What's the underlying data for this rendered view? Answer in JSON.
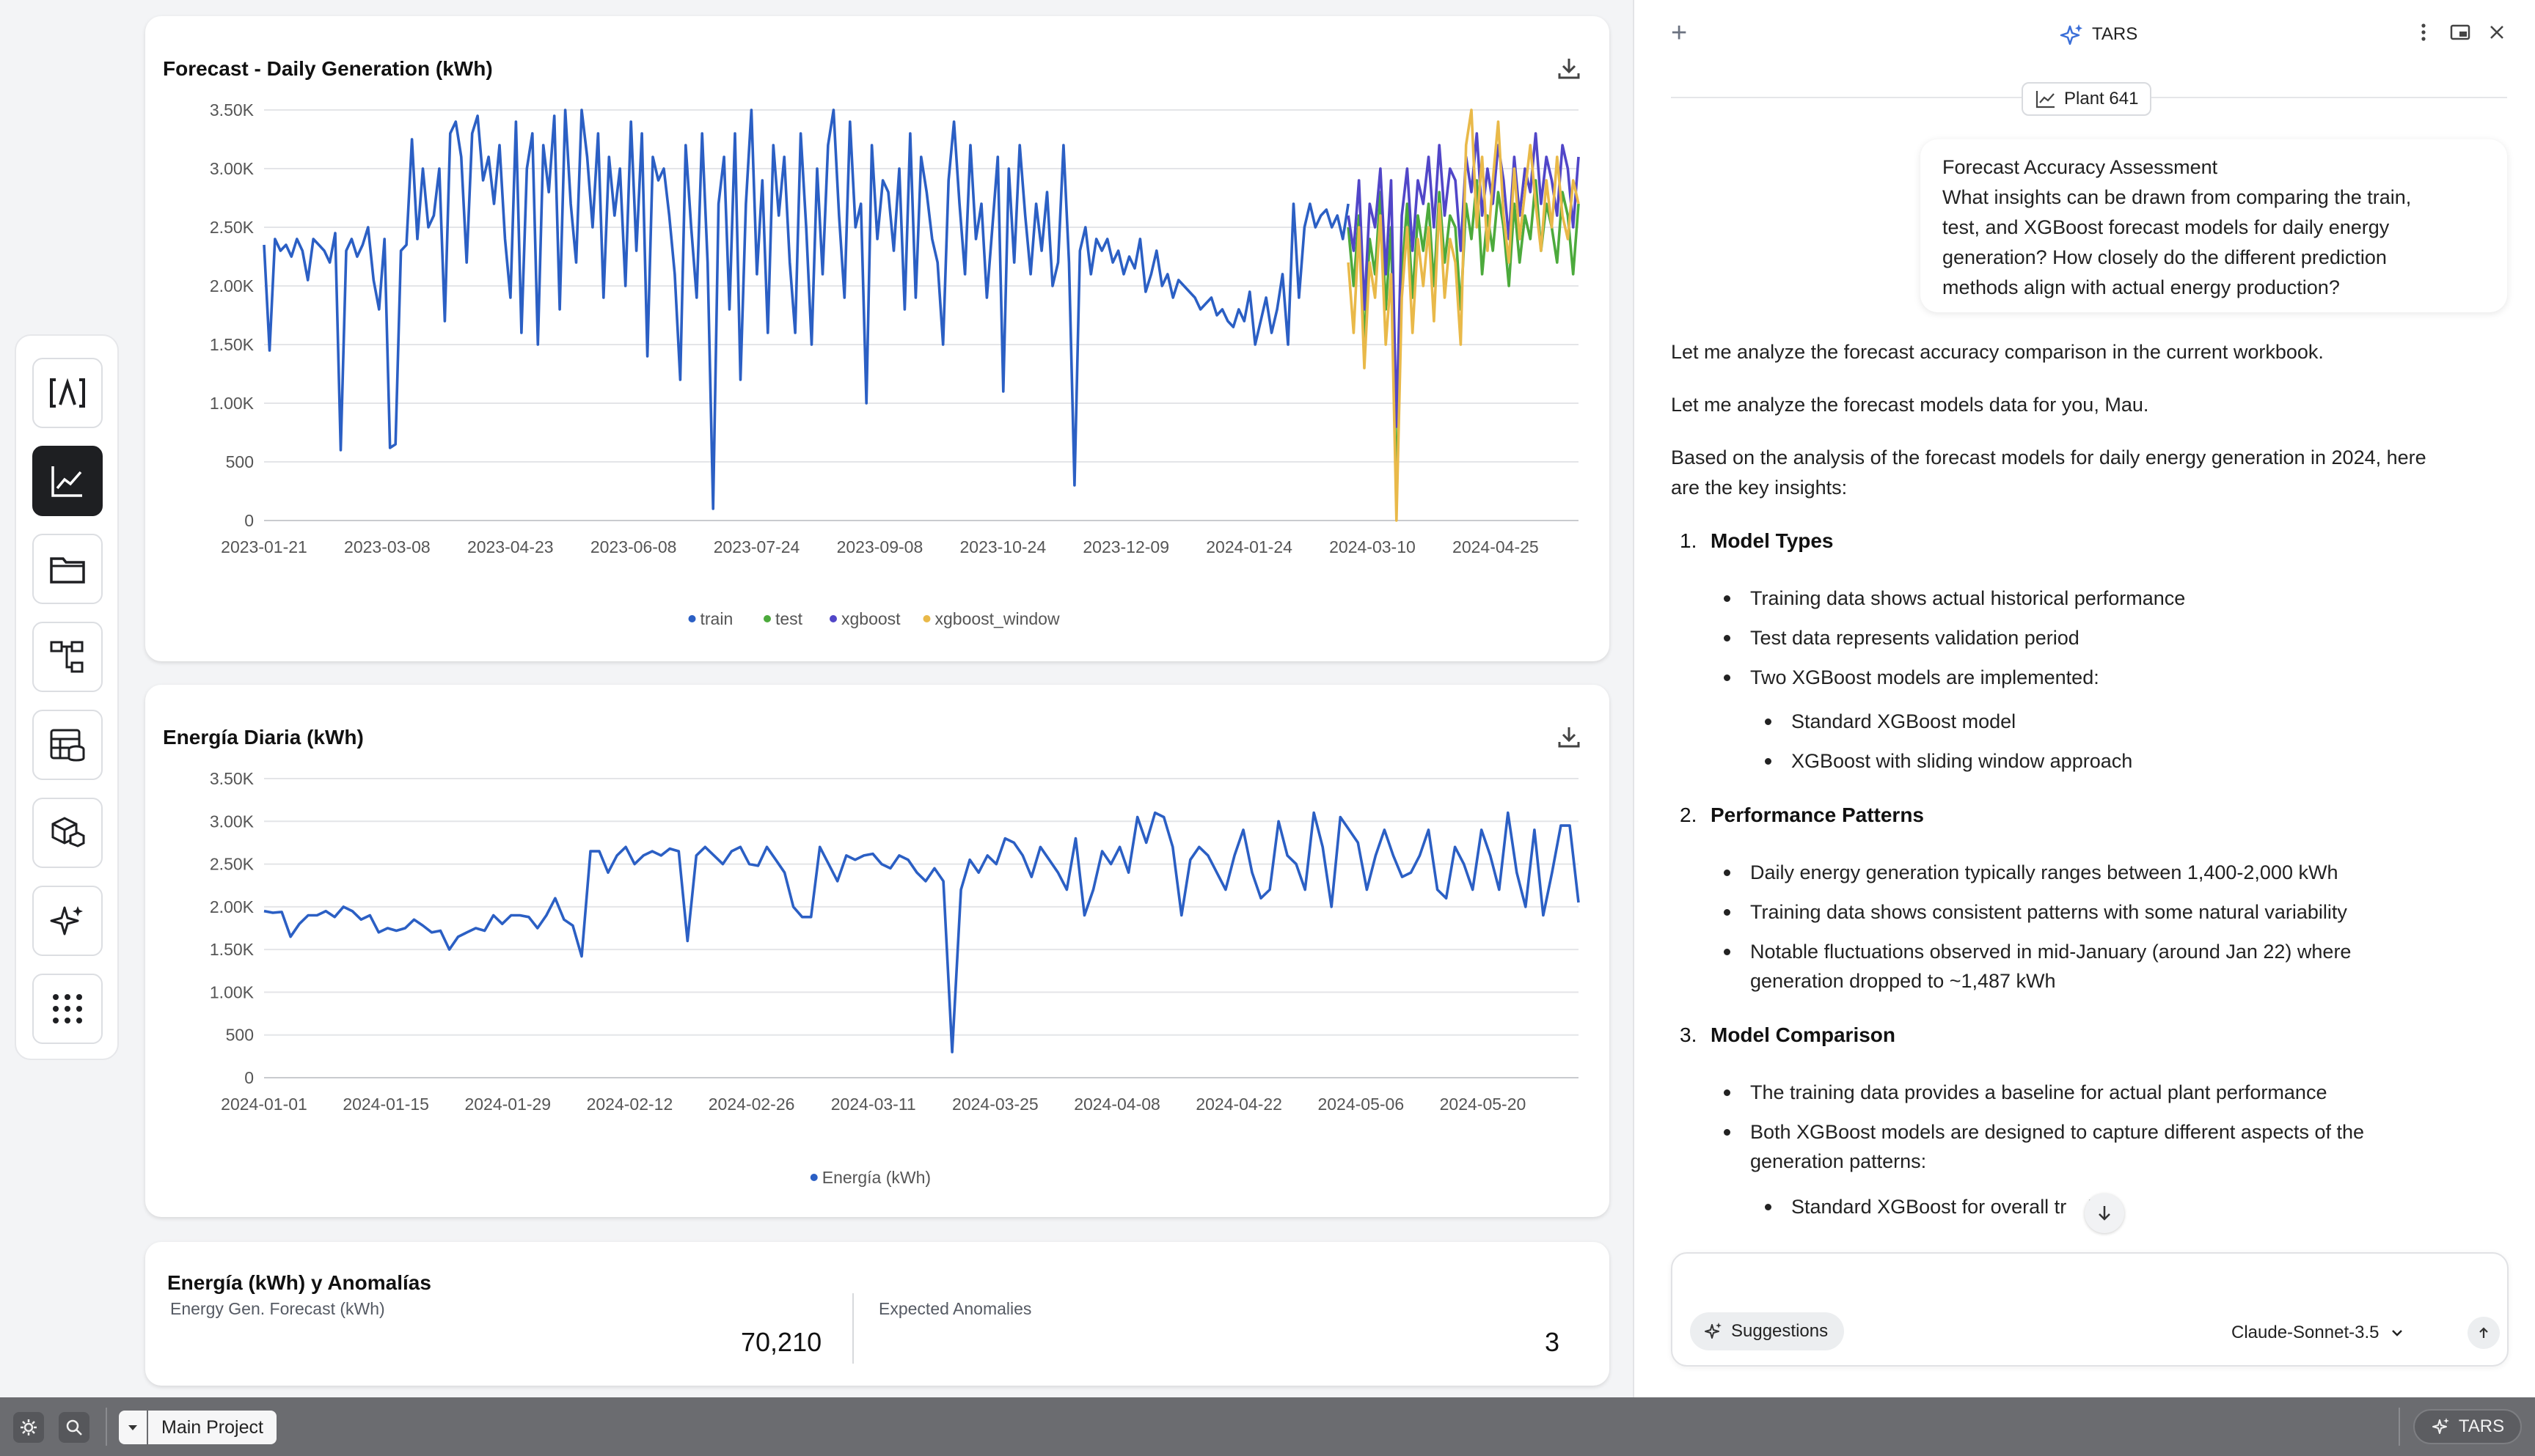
{
  "rail": {
    "items": [
      {
        "name": "lambda-logo-icon",
        "label": "[Λ]"
      },
      {
        "name": "line-chart-icon",
        "active": true
      },
      {
        "name": "folder-icon"
      },
      {
        "name": "flow-diagram-icon"
      },
      {
        "name": "table-database-icon"
      },
      {
        "name": "cube-icon"
      },
      {
        "name": "sparkle-icon"
      },
      {
        "name": "apps-grid-icon"
      }
    ]
  },
  "chart1": {
    "title": "Forecast - Daily Generation (kWh)",
    "chart_data": {
      "type": "line",
      "title": "Forecast - Daily Generation (kWh)",
      "x_start": "2023-01-21",
      "x_end": "2024-05-26",
      "x_ticks": [
        "2023-01-21",
        "2023-03-08",
        "2023-04-23",
        "2023-06-08",
        "2023-07-24",
        "2023-09-08",
        "2023-10-24",
        "2023-12-09",
        "2024-01-24",
        "2024-03-10",
        "2024-04-25"
      ],
      "y_ticks": [
        "0",
        "500",
        "1.00K",
        "1.50K",
        "2.00K",
        "2.50K",
        "3.00K",
        "3.50K"
      ],
      "ylim": [
        0,
        3500
      ],
      "legend_position": "bottom",
      "grid": true,
      "series": [
        {
          "name": "train",
          "color": "#2b5fc4",
          "x_range": [
            "2023-01-21",
            "2024-03-01"
          ],
          "values": [
            2350,
            1450,
            2400,
            2300,
            2350,
            2250,
            2400,
            2300,
            2050,
            2400,
            2350,
            2300,
            2200,
            2450,
            600,
            2300,
            2400,
            2250,
            2350,
            2500,
            2050,
            1800,
            2400,
            620,
            650,
            2300,
            2350,
            3250,
            2400,
            3000,
            2500,
            2600,
            3000,
            1700,
            3300,
            3400,
            3100,
            2200,
            3300,
            3450,
            2900,
            3100,
            2700,
            3200,
            2400,
            1900,
            3400,
            1600,
            3000,
            3300,
            1500,
            3200,
            2800,
            3450,
            1800,
            3500,
            2700,
            2200,
            3500,
            3100,
            2500,
            3300,
            1900,
            3100,
            2600,
            3000,
            2000,
            3400,
            2300,
            3300,
            1400,
            3100,
            2900,
            3000,
            2600,
            2100,
            1200,
            3200,
            2500,
            1900,
            3300,
            2200,
            100,
            2700,
            3100,
            1800,
            3300,
            1200,
            2700,
            3500,
            2100,
            2900,
            1600,
            3200,
            2600,
            3100,
            2200,
            1600,
            3300,
            2500,
            1500,
            3000,
            2100,
            3200,
            3500,
            2600,
            1900,
            3400,
            2500,
            2700,
            1000,
            3200,
            2400,
            2900,
            2800,
            2300,
            3000,
            1800,
            3300,
            1900,
            3100,
            2800,
            2400,
            2200,
            1500,
            2900,
            3400,
            2700,
            2100,
            3200,
            2400,
            2700,
            1900,
            2500,
            3100,
            1100,
            3000,
            2200,
            3200,
            2600,
            2100,
            2700,
            2300,
            2800,
            2000,
            2200,
            3200,
            2200,
            300,
            2300,
            2500,
            2100,
            2400,
            2300,
            2400,
            2200,
            2300,
            2100,
            2250,
            2150,
            2400,
            1950,
            2100,
            2300,
            2000,
            2100,
            1900,
            2050,
            2000,
            1950,
            1900,
            1800,
            1850,
            1900,
            1750,
            1800,
            1700,
            1650,
            1800,
            1700,
            1950,
            1500,
            1700,
            1900,
            1600,
            1800,
            2100,
            1500,
            2700,
            1900,
            2500,
            2700,
            2500,
            2600,
            2650,
            2500,
            2600,
            2400,
            2700
          ]
        },
        {
          "name": "test",
          "color": "#4caa3c",
          "x_range": [
            "2024-03-01",
            "2024-05-26"
          ],
          "values": [
            2500,
            2000,
            2600,
            1500,
            2400,
            2100,
            2800,
            1800,
            2500,
            200,
            2100,
            2700,
            1900,
            2600,
            2300,
            2700,
            2000,
            2800,
            2200,
            2600,
            2500,
            1800,
            2700,
            2400,
            2900,
            2100,
            2600,
            2300,
            2800,
            2500,
            2000,
            2700,
            2200,
            2600,
            2400,
            2900,
            2300,
            2700,
            2500,
            2200,
            2800,
            2600,
            2100,
            2700
          ]
        },
        {
          "name": "xgboost",
          "color": "#5146c8",
          "x_range": [
            "2024-03-01",
            "2024-05-26"
          ],
          "values": [
            2600,
            2300,
            2900,
            1800,
            2700,
            2500,
            3000,
            2100,
            2900,
            800,
            2600,
            3000,
            2300,
            2900,
            2700,
            3100,
            2500,
            3200,
            2600,
            3000,
            2900,
            2300,
            3100,
            2800,
            3300,
            2600,
            3000,
            2700,
            3200,
            2900,
            2400,
            3100,
            2600,
            3000,
            2800,
            3300,
            2700,
            3100,
            2900,
            2600,
            3200,
            3000,
            2500,
            3100
          ]
        },
        {
          "name": "xgboost_window",
          "color": "#e9b949",
          "x_range": [
            "2024-03-01",
            "2024-05-26"
          ],
          "values": [
            2200,
            1600,
            2500,
            1300,
            2200,
            1900,
            2600,
            1500,
            2100,
            0,
            1900,
            2500,
            1600,
            2400,
            2000,
            2500,
            1700,
            2700,
            1900,
            2400,
            2200,
            1500,
            3200,
            3500,
            2500,
            3100,
            2300,
            2900,
            3400,
            2600,
            2200,
            3000,
            2400,
            2800,
            3200,
            2700,
            2300,
            2900,
            2500,
            3100,
            2600,
            2400,
            2900,
            2700
          ]
        }
      ]
    }
  },
  "chart2": {
    "title": "Energía Diaria (kWh)",
    "chart_data": {
      "type": "line",
      "title": "Energía Diaria (kWh)",
      "x_start": "2024-01-01",
      "x_end": "2024-05-31",
      "x_ticks": [
        "2024-01-01",
        "2024-01-15",
        "2024-01-29",
        "2024-02-12",
        "2024-02-26",
        "2024-03-11",
        "2024-03-25",
        "2024-04-08",
        "2024-04-22",
        "2024-05-06",
        "2024-05-20"
      ],
      "y_ticks": [
        "0",
        "500",
        "1.00K",
        "1.50K",
        "2.00K",
        "2.50K",
        "3.00K",
        "3.50K"
      ],
      "ylim": [
        0,
        3500
      ],
      "legend_position": "bottom",
      "grid": true,
      "series": [
        {
          "name": "Energía (kWh)",
          "color": "#2b5fc4",
          "values": [
            1950,
            1930,
            1940,
            1650,
            1800,
            1900,
            1900,
            1950,
            1880,
            2000,
            1950,
            1850,
            1900,
            1700,
            1750,
            1720,
            1750,
            1850,
            1780,
            1700,
            1720,
            1500,
            1650,
            1700,
            1750,
            1720,
            1900,
            1800,
            1900,
            1900,
            1880,
            1750,
            1900,
            2100,
            1850,
            1780,
            1420,
            2650,
            2650,
            2400,
            2600,
            2700,
            2500,
            2600,
            2650,
            2600,
            2680,
            2650,
            1600,
            2600,
            2700,
            2600,
            2500,
            2650,
            2700,
            2500,
            2480,
            2700,
            2550,
            2400,
            2000,
            1880,
            1880,
            2700,
            2500,
            2300,
            2600,
            2550,
            2600,
            2620,
            2500,
            2450,
            2600,
            2550,
            2400,
            2300,
            2450,
            2300,
            300,
            2200,
            2550,
            2400,
            2600,
            2500,
            2800,
            2750,
            2600,
            2350,
            2700,
            2550,
            2400,
            2200,
            2800,
            1900,
            2200,
            2650,
            2500,
            2700,
            2400,
            3050,
            2750,
            3100,
            3050,
            2700,
            1900,
            2550,
            2700,
            2600,
            2400,
            2200,
            2600,
            2900,
            2400,
            2100,
            2200,
            3000,
            2600,
            2500,
            2200,
            3100,
            2700,
            2000,
            3050,
            2900,
            2750,
            2200,
            2600,
            2900,
            2600,
            2350,
            2400,
            2600,
            2900,
            2200,
            2100,
            2700,
            2500,
            2200,
            2900,
            2600,
            2200,
            3100,
            2400,
            2000,
            2900,
            1900,
            2400,
            2950,
            2950,
            2050
          ]
        }
      ]
    }
  },
  "card3": {
    "title": "Energía (kWh) y Anomalías",
    "kpi1_label": "Energy Gen. Forecast (kWh)",
    "kpi1_value": "70,210",
    "kpi2_label": "Expected Anomalies",
    "kpi2_value": "3"
  },
  "panel": {
    "title": "TARS",
    "plant_chip": "Plant 641",
    "user_message": [
      "Forecast Accuracy Assessment",
      "What insights can be drawn from comparing the train,",
      "test, and XGBoost forecast models for daily energy",
      "generation? How closely do the different prediction",
      "methods align with actual energy production?"
    ],
    "p1": "Let me analyze the forecast accuracy comparison in the current workbook.",
    "p2": "Let me analyze the forecast models data for you, Mau.",
    "p3_line1": "Based on the analysis of the forecast models for daily energy generation in 2024, here",
    "p3_line2": "are the key insights:",
    "sections": [
      {
        "num": "1.",
        "title": "Model Types"
      },
      {
        "num": "2.",
        "title": "Performance Patterns"
      },
      {
        "num": "3.",
        "title": "Model Comparison"
      }
    ],
    "s1_b1": "Training data shows actual historical performance",
    "s1_b2": "Test data represents validation period",
    "s1_b3": "Two XGBoost models are implemented:",
    "s1_b3a": "Standard XGBoost model",
    "s1_b3b": "XGBoost with sliding window approach",
    "s2_b1": "Daily energy generation typically ranges between 1,400-2,000 kWh",
    "s2_b2": "Training data shows consistent patterns with some natural variability",
    "s2_b3_l1": "Notable fluctuations observed in mid-January (around Jan 22) where",
    "s2_b3_l2": "generation dropped to ~1,487 kWh",
    "s3_b1": "The training data provides a baseline for actual plant performance",
    "s3_b2_l1": "Both XGBoost models are designed to capture different aspects of the",
    "s3_b2_l2": "generation patterns:",
    "s3_b2a": "Standard XGBoost for overall tr    's",
    "suggestions_label": "Suggestions",
    "model_label": "Claude-Sonnet-3.5"
  },
  "bottombar": {
    "project_tab": "Main Project",
    "tars_button": "TARS"
  }
}
